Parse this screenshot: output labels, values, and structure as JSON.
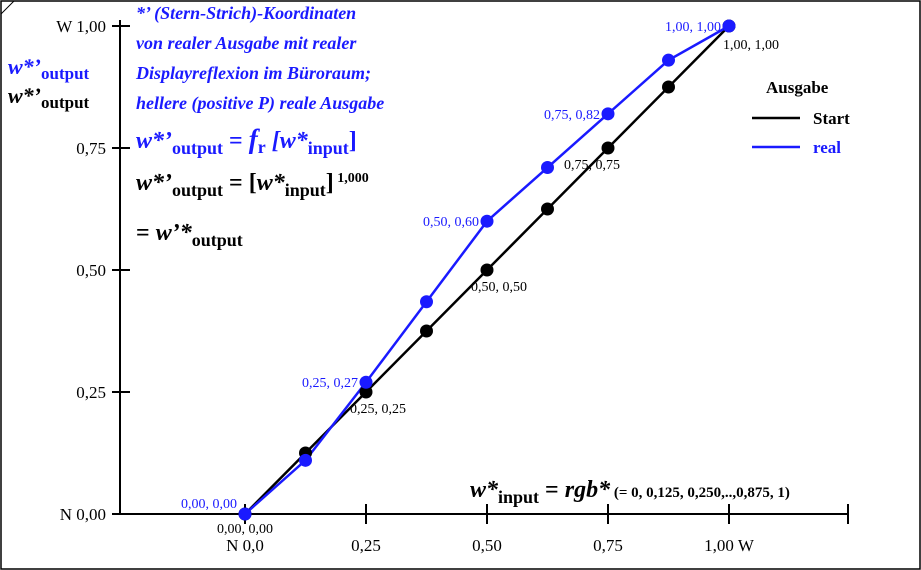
{
  "chart_data": {
    "type": "line",
    "x": [
      0,
      0.125,
      0.25,
      0.375,
      0.5,
      0.625,
      0.75,
      0.875,
      1.0
    ],
    "xlim": [
      -0.5,
      1.5
    ],
    "ylim": [
      -0.05,
      1.03
    ],
    "grid": false,
    "legend_position": "top-right",
    "legend_title": "Ausgabe",
    "series": [
      {
        "name": "Start",
        "color": "#000000",
        "values": [
          0,
          0.125,
          0.25,
          0.375,
          0.5,
          0.625,
          0.75,
          0.875,
          1.0
        ]
      },
      {
        "name": "real",
        "color": "#1a1aff",
        "values": [
          0,
          0.11,
          0.27,
          0.435,
          0.6,
          0.71,
          0.82,
          0.93,
          1.0
        ]
      }
    ],
    "x_ticks": [
      {
        "value": 0,
        "label": "N  0,0"
      },
      {
        "value": 0.25,
        "label": "0,25"
      },
      {
        "value": 0.5,
        "label": "0,50"
      },
      {
        "value": 0.75,
        "label": "0,75"
      },
      {
        "value": 1.0,
        "label": "1,00  W"
      }
    ],
    "y_ticks": [
      {
        "value": 0,
        "label": "N 0,00"
      },
      {
        "value": 0.25,
        "label": "0,25"
      },
      {
        "value": 0.5,
        "label": "0,50"
      },
      {
        "value": 0.75,
        "label": "0,75"
      },
      {
        "value": 1.0,
        "label": "W 1,00"
      }
    ],
    "point_labels": {
      "start": [
        {
          "index": 0,
          "text": "0,00, 0,00"
        },
        {
          "index": 2,
          "text": "0,25, 0,25"
        },
        {
          "index": 4,
          "text": "0,50, 0,50"
        },
        {
          "index": 6,
          "text": "0,75, 0,75"
        },
        {
          "index": 8,
          "text": "1,00, 1,00"
        }
      ],
      "real": [
        {
          "index": 0,
          "text": "0,00, 0,00"
        },
        {
          "index": 2,
          "text": "0,25, 0,27"
        },
        {
          "index": 4,
          "text": "0,50, 0,60"
        },
        {
          "index": 6,
          "text": "0,75, 0,82"
        },
        {
          "index": 8,
          "text": "1,00, 1,00"
        }
      ]
    },
    "y_axis_title": {
      "blue": {
        "main": "w*’",
        "sub": "output"
      },
      "black": {
        "main": "w*’",
        "sub": "output"
      }
    },
    "annotation_lines": [
      "*’ (Stern-Strich)-Koordinaten",
      "von realer Ausgabe mit realer",
      "Displayreflexion im Büroraum;",
      "hellere (positive P) reale Ausgabe"
    ],
    "formula_real": {
      "lhs": "w*’",
      "lhs_sub": "output",
      "eq": " = ",
      "f": "f",
      "f_sub": "r",
      "arg": "[w*",
      "arg_sub": "input",
      "close": "]"
    },
    "formula_identity": {
      "lhs": "w*’",
      "lhs_sub": "output",
      "eq": " = [",
      "arg": "w*",
      "arg_sub": "input",
      "close": "]",
      "exp": "1,000"
    },
    "formula_identity2": {
      "eq": "= ",
      "rhs": "w’*",
      "rhs_sub": "output"
    },
    "x_axis_title": {
      "main": "w*",
      "sub": "input",
      "eq": " = ",
      "rhs": "rgb*",
      "note": " (= 0, 0,125, 0,250,..,0,875, 1)"
    }
  }
}
